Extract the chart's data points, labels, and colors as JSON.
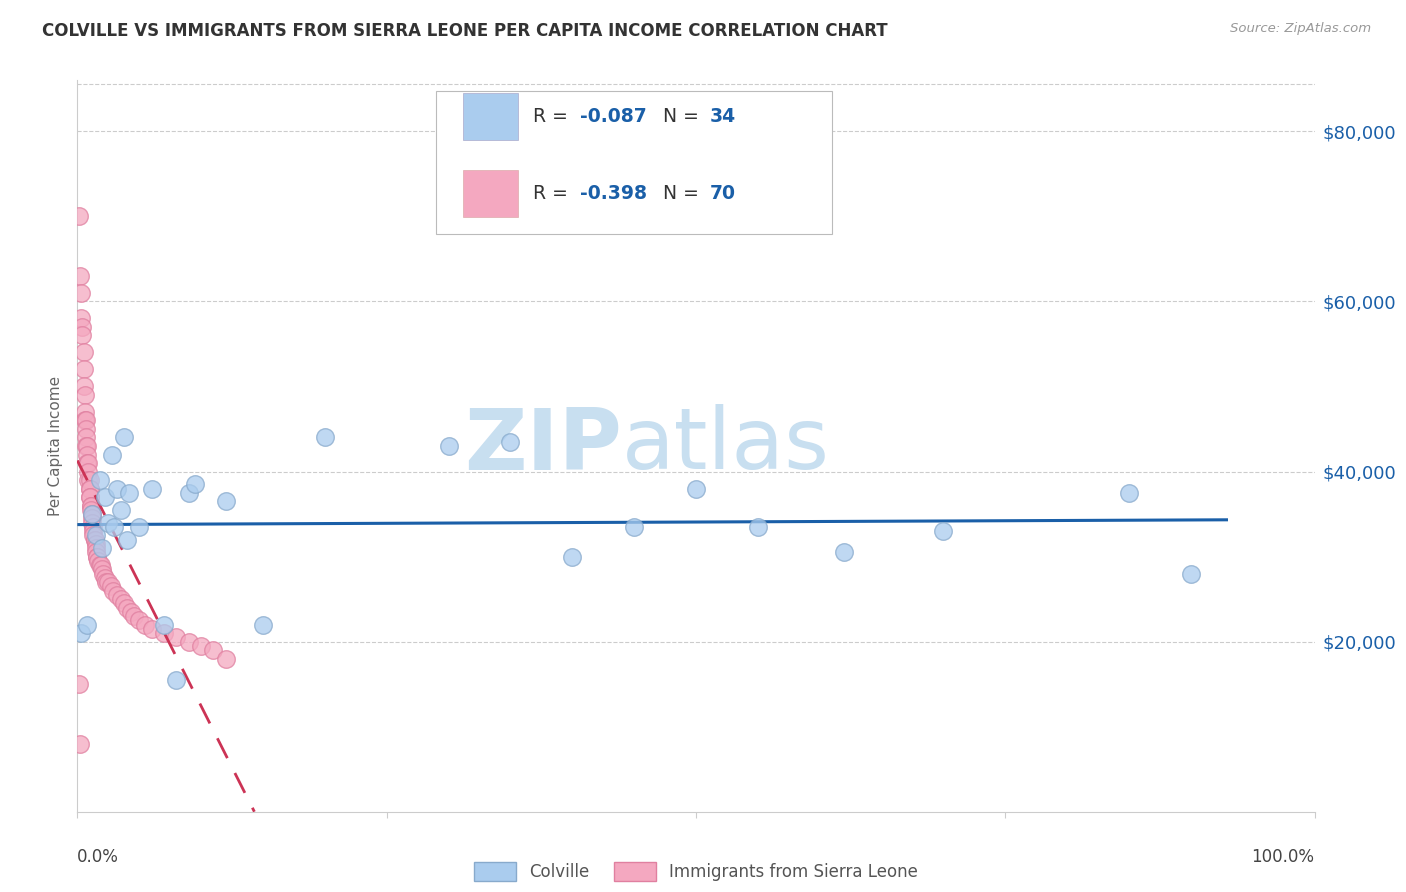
{
  "title": "COLVILLE VS IMMIGRANTS FROM SIERRA LEONE PER CAPITA INCOME CORRELATION CHART",
  "source": "Source: ZipAtlas.com",
  "ylabel": "Per Capita Income",
  "yticks": [
    20000,
    40000,
    60000,
    80000
  ],
  "ytick_labels": [
    "$20,000",
    "$40,000",
    "$60,000",
    "$80,000"
  ],
  "ylim": [
    0,
    86000
  ],
  "xlim": [
    0.0,
    1.0
  ],
  "legend1_R": "-0.087",
  "legend1_N": "34",
  "legend2_R": "-0.398",
  "legend2_N": "70",
  "colville_color": "#aaccee",
  "colville_edge": "#88aacc",
  "sierra_leone_color": "#f4a8c0",
  "sierra_leone_edge": "#e080a0",
  "trend_blue": "#1a5fa8",
  "trend_pink": "#cc3355",
  "watermark_color": "#c8dff0",
  "grid_color": "#cccccc",
  "r_n_color": "#1a5fa8",
  "colville_x": [
    0.003,
    0.008,
    0.012,
    0.015,
    0.018,
    0.02,
    0.022,
    0.025,
    0.028,
    0.03,
    0.032,
    0.035,
    0.038,
    0.04,
    0.042,
    0.05,
    0.06,
    0.07,
    0.08,
    0.09,
    0.095,
    0.12,
    0.15,
    0.2,
    0.3,
    0.35,
    0.4,
    0.45,
    0.5,
    0.55,
    0.62,
    0.7,
    0.85,
    0.9
  ],
  "colville_y": [
    21000,
    22000,
    35000,
    32500,
    39000,
    31000,
    37000,
    34000,
    42000,
    33500,
    38000,
    35500,
    44000,
    32000,
    37500,
    33500,
    38000,
    22000,
    15500,
    37500,
    38500,
    36500,
    22000,
    44000,
    43000,
    43500,
    30000,
    33500,
    38000,
    33500,
    30500,
    33000,
    37500,
    28000
  ],
  "sierra_leone_x": [
    0.001,
    0.002,
    0.003,
    0.003,
    0.004,
    0.004,
    0.005,
    0.005,
    0.005,
    0.006,
    0.006,
    0.006,
    0.007,
    0.007,
    0.007,
    0.007,
    0.008,
    0.008,
    0.008,
    0.009,
    0.009,
    0.009,
    0.01,
    0.01,
    0.01,
    0.01,
    0.01,
    0.011,
    0.011,
    0.011,
    0.012,
    0.012,
    0.012,
    0.013,
    0.013,
    0.013,
    0.014,
    0.014,
    0.015,
    0.015,
    0.015,
    0.016,
    0.016,
    0.017,
    0.018,
    0.019,
    0.02,
    0.021,
    0.022,
    0.023,
    0.025,
    0.027,
    0.029,
    0.032,
    0.035,
    0.038,
    0.04,
    0.043,
    0.046,
    0.05,
    0.055,
    0.06,
    0.07,
    0.08,
    0.09,
    0.1,
    0.11,
    0.12,
    0.001,
    0.002
  ],
  "sierra_leone_y": [
    70000,
    63000,
    61000,
    58000,
    57000,
    56000,
    54000,
    52000,
    50000,
    49000,
    47000,
    46000,
    46000,
    45000,
    44000,
    43000,
    43000,
    42000,
    41000,
    41000,
    40000,
    39000,
    39000,
    38000,
    38000,
    37000,
    37000,
    36000,
    36000,
    35500,
    35000,
    34500,
    34000,
    33500,
    33000,
    32500,
    32000,
    32000,
    31500,
    31000,
    30500,
    30000,
    30000,
    29500,
    29000,
    29000,
    28500,
    28000,
    27500,
    27000,
    27000,
    26500,
    26000,
    25500,
    25000,
    24500,
    24000,
    23500,
    23000,
    22500,
    22000,
    21500,
    21000,
    20500,
    20000,
    19500,
    19000,
    18000,
    15000,
    8000
  ]
}
